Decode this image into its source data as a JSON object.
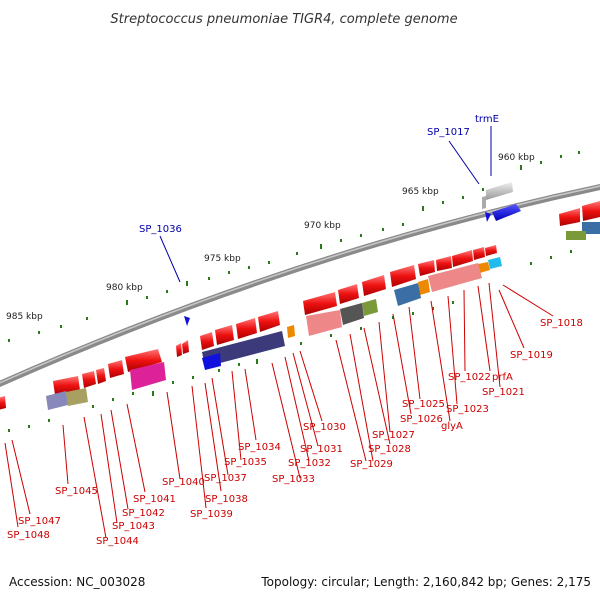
{
  "title": "Streptococcus pneumoniae TIGR4, complete genome",
  "footer": {
    "accession": "Accession: NC_003028",
    "summary": "Topology: circular; Length: 2,160,842 bp; Genes: 2,175"
  },
  "scale_labels": [
    "960 kbp",
    "965 kbp",
    "970 kbp",
    "975 kbp",
    "980 kbp",
    "985 kbp"
  ],
  "gene_labels_red": [
    "SP_1018",
    "SP_1019",
    "SP_1021",
    "prfA",
    "SP_1022",
    "SP_1023",
    "glyA",
    "SP_1025",
    "SP_1026",
    "SP_1027",
    "SP_1028",
    "SP_1029",
    "SP_1030",
    "SP_1031",
    "SP_1032",
    "SP_1033",
    "SP_1034",
    "SP_1035",
    "SP_1037",
    "SP_1038",
    "SP_1039",
    "SP_1040",
    "SP_1041",
    "SP_1042",
    "SP_1043",
    "SP_1044",
    "SP_1045",
    "SP_1047",
    "SP_1048"
  ],
  "gene_labels_blue": [
    "SP_1017",
    "trmE",
    "SP_1036"
  ],
  "colors": {
    "backbone": "#8a8a8a",
    "gene_red": "#ee1111",
    "gene_blue": "#1111dd",
    "label_red": "#cc0000",
    "label_blue": "#0000aa",
    "tick_green": "#2a7a1a",
    "cog_blue": "#3a6ea5",
    "cog_pink": "#ee8888",
    "cog_indigo": "#3c3a7a",
    "cog_magenta": "#dd2299",
    "cog_olive": "#7a9a3a",
    "cog_gray": "#777777",
    "cog_orange": "#ee8800",
    "cog_cyan": "#22bbee",
    "cog_lavender": "#8888bb",
    "cog_khaki": "#a8a060"
  }
}
